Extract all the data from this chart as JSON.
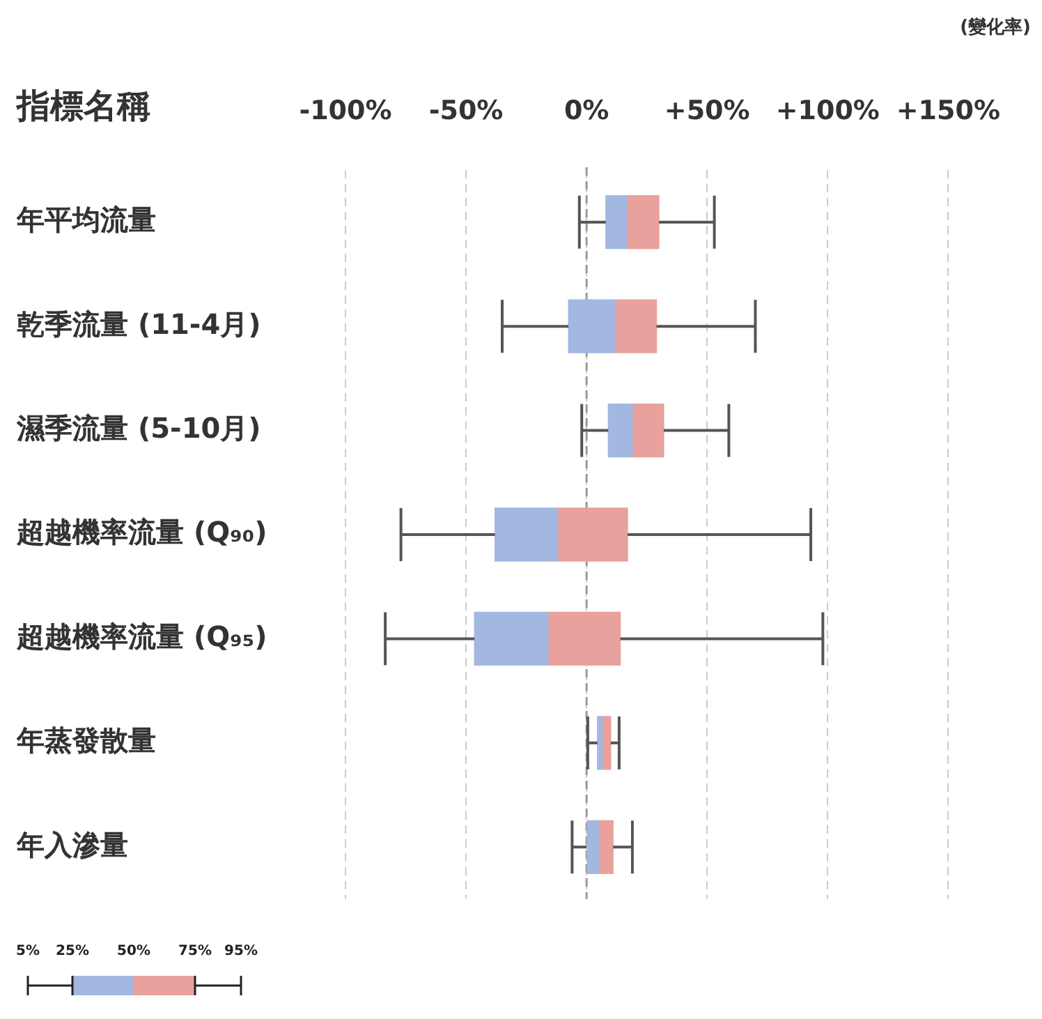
{
  "chart_data": {
    "type": "box",
    "orientation": "horizontal",
    "ylabel": "指標名稱",
    "xlabel": "(變化率)",
    "categories": [
      "年平均流量",
      "乾季流量 (11-4月)",
      "濕季流量 (5-10月)",
      "超越機率流量 (Q₉₀)",
      "超越機率流量 (Q₉₅)",
      "年蒸發散量",
      "年入滲量"
    ],
    "boxes": [
      {
        "low": -3,
        "q1": 8,
        "median": 16.5,
        "q3": 30,
        "high": 53
      },
      {
        "low": -35,
        "q1": -7.5,
        "median": 12,
        "q3": 29,
        "high": 70
      },
      {
        "low": -2,
        "q1": 9,
        "median": 19,
        "q3": 32,
        "high": 59
      },
      {
        "low": -77,
        "q1": -38,
        "median": -12,
        "q3": 17,
        "high": 93
      },
      {
        "low": -83.5,
        "q1": -46.5,
        "median": -16,
        "q3": 14,
        "high": 98
      },
      {
        "low": 0.5,
        "q1": 4.5,
        "median": 6.5,
        "q3": 10,
        "high": 13.5
      },
      {
        "low": -6,
        "q1": 0,
        "median": 5,
        "q3": 11,
        "high": 19
      }
    ],
    "color": "#e8a19c",
    "colors": [
      "#a3b8e0",
      "#a3b8e0",
      "#a3b8e0",
      "#a3b8e0",
      "#a3b8e0",
      "#a3b8e0",
      "#a3b8e0"
    ],
    "xlim": [
      -100,
      150
    ],
    "xticks": [
      {
        "value": -100,
        "label": "-100%"
      },
      {
        "value": -50,
        "label": "-50%"
      },
      {
        "value": 0,
        "label": "0%"
      },
      {
        "value": 50,
        "label": "+50%"
      },
      {
        "value": 100,
        "label": "+100%"
      },
      {
        "value": 150,
        "label": "+150%"
      }
    ],
    "grid": "x",
    "line_style": "dashed",
    "ref_lines": [
      {
        "axis": "x",
        "value": 0,
        "color": "#999999",
        "line_style": "dashed"
      }
    ],
    "annotations": [
      "5%",
      "25%",
      "50%",
      "75%",
      "95%"
    ]
  }
}
